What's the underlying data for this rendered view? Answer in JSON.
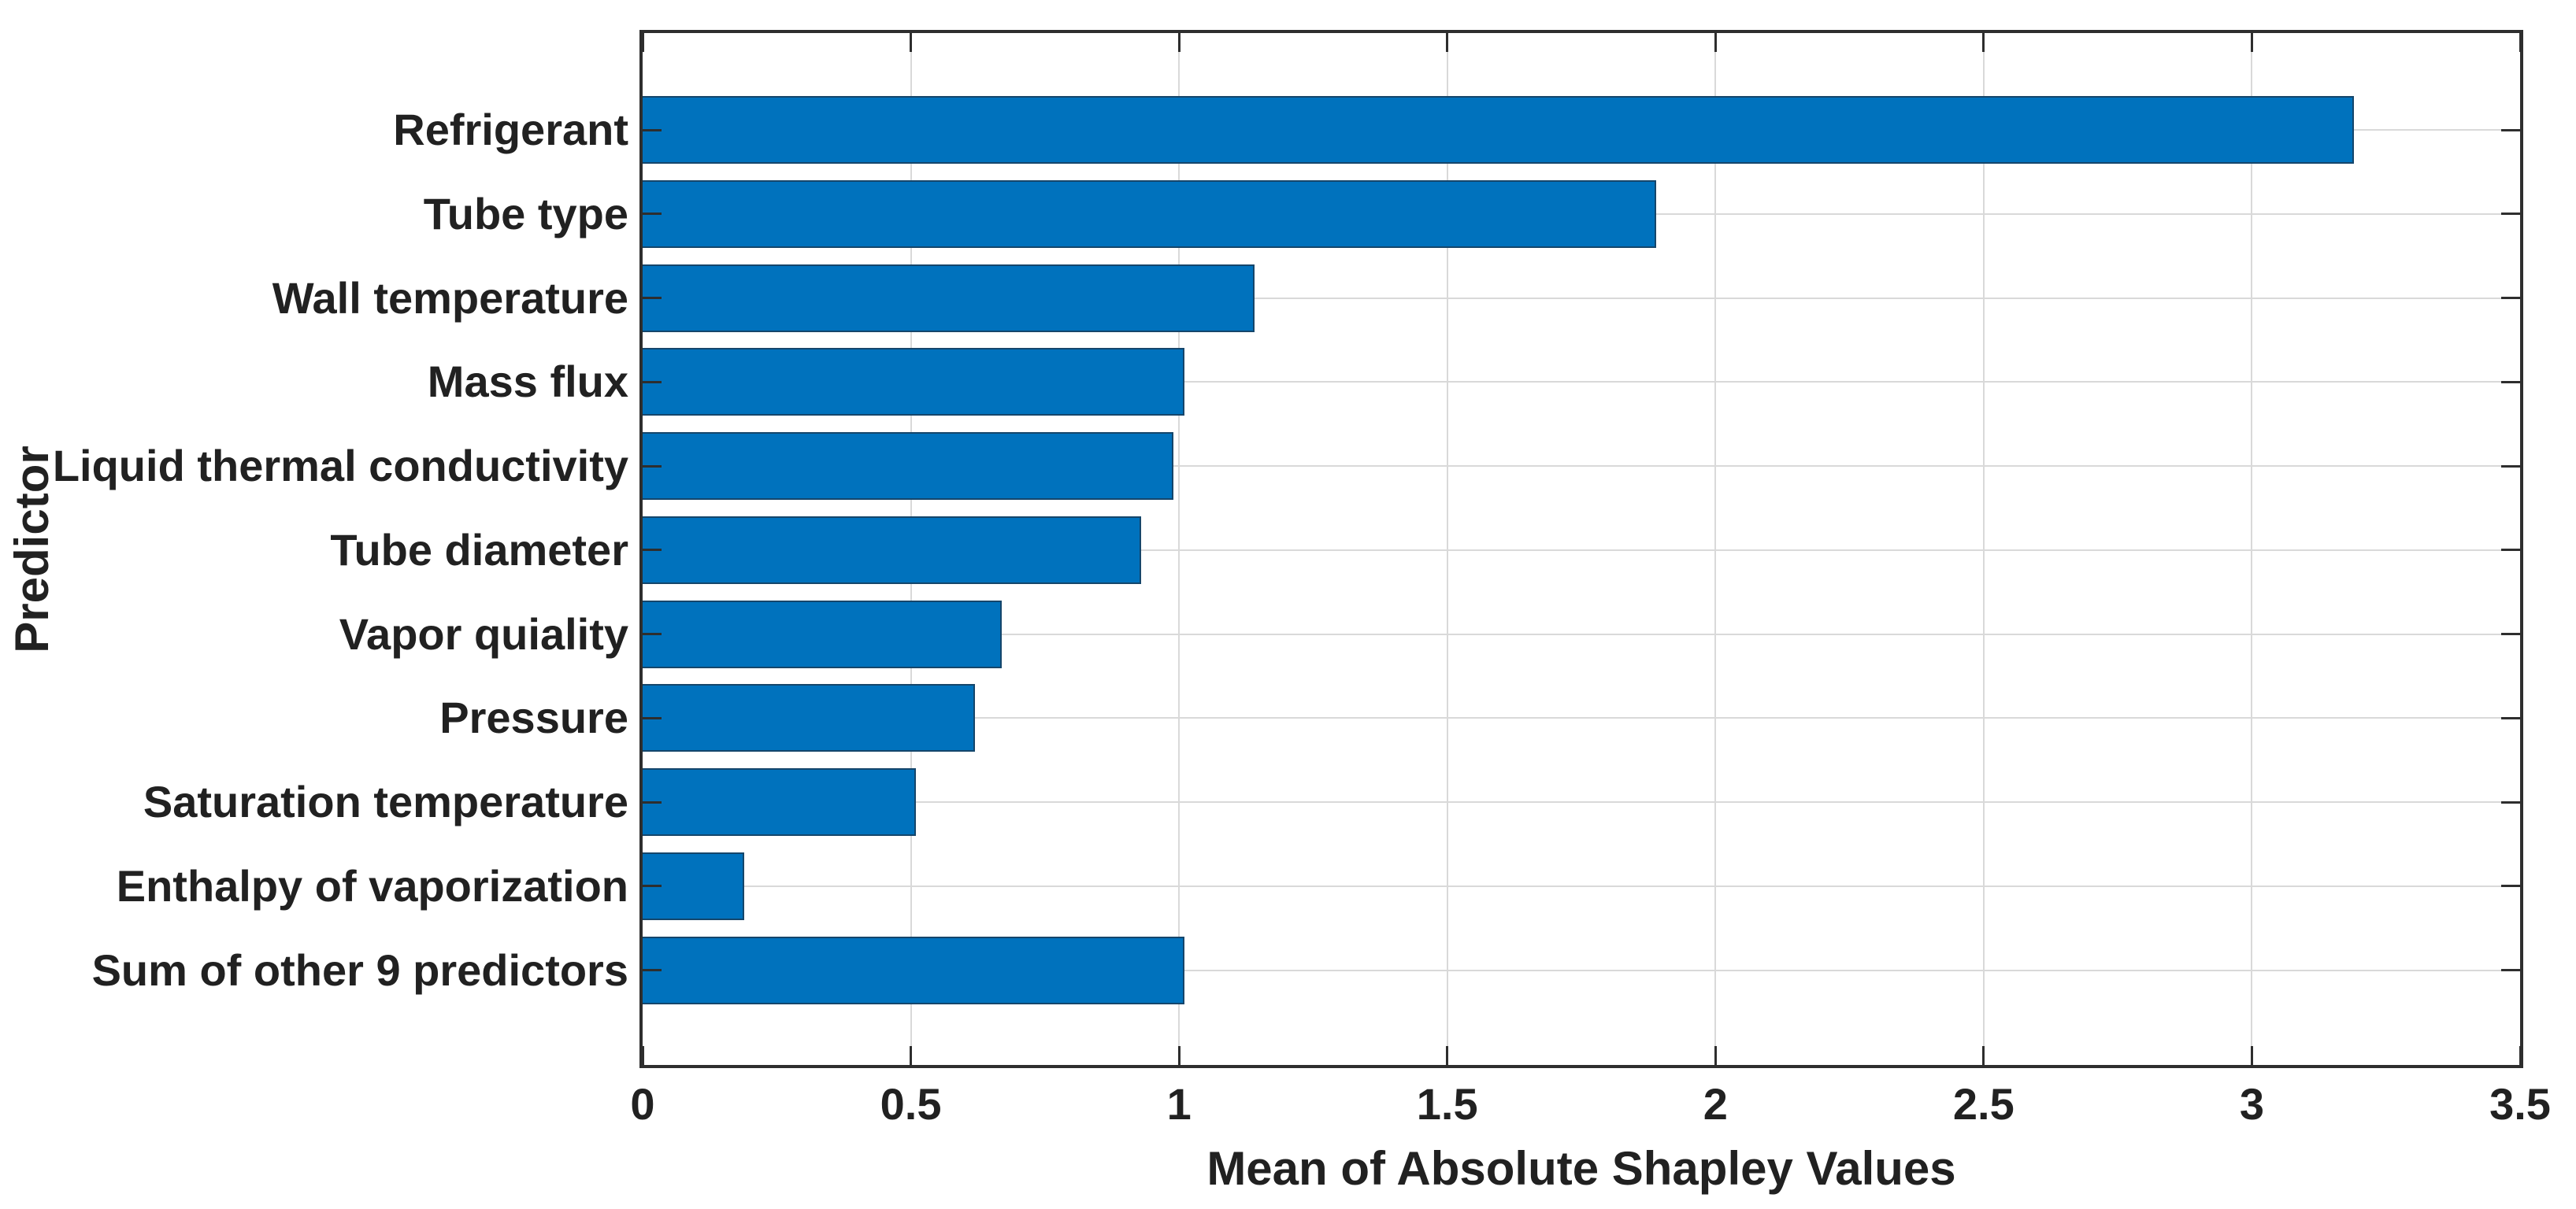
{
  "chart_data": {
    "type": "bar",
    "orientation": "horizontal",
    "title": "",
    "xlabel": "Mean of Absolute Shapley Values",
    "ylabel": "Predictor",
    "categories": [
      "Refrigerant",
      "Tube type",
      "Wall temperature",
      "Mass flux",
      "Liquid thermal conductivity",
      "Tube diameter",
      "Vapor quiality",
      "Pressure",
      "Saturation temperature",
      "Enthalpy of vaporization",
      "Sum of other 9 predictors"
    ],
    "values": [
      3.19,
      1.89,
      1.14,
      1.01,
      0.99,
      0.93,
      0.67,
      0.62,
      0.51,
      0.19,
      1.01
    ],
    "xlim": [
      0,
      3.5
    ],
    "xtick_values": [
      0,
      0.5,
      1,
      1.5,
      2,
      2.5,
      3,
      3.5
    ],
    "xtick_labels": [
      "0",
      "0.5",
      "1",
      "1.5",
      "2",
      "2.5",
      "3",
      "3.5"
    ],
    "grid": "both",
    "legend": "none",
    "colors": {
      "bar_fill": "#0072BD",
      "bar_edge": "#15466b",
      "axis": "#2e2e2e",
      "grid": "#d9d9d9",
      "text": "#212121",
      "background": "#ffffff"
    }
  }
}
